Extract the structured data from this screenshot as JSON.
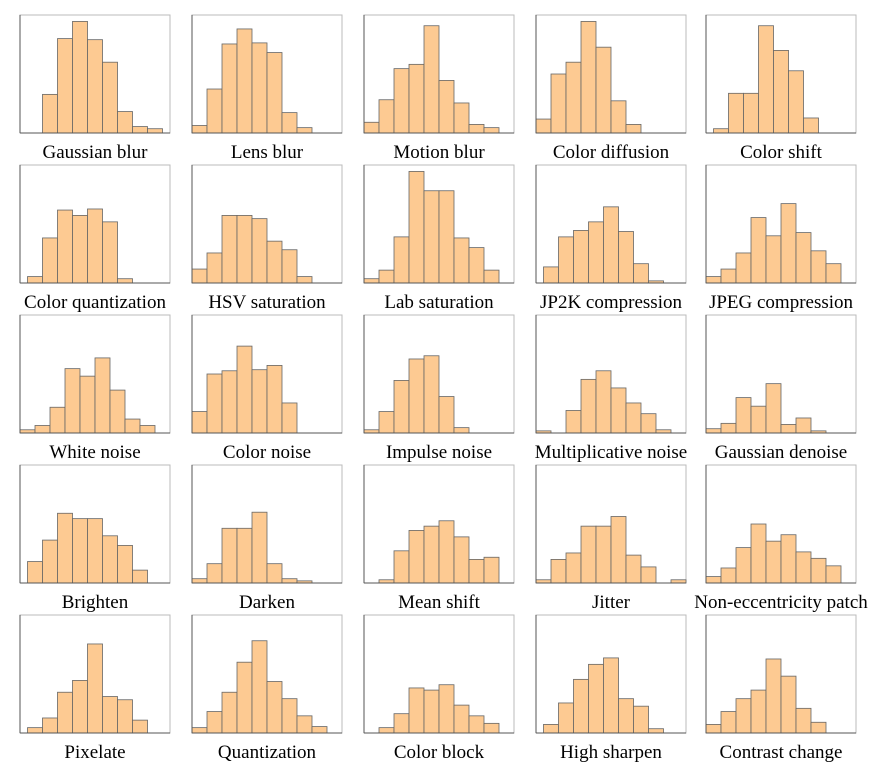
{
  "chart_data": [
    {
      "type": "histogram",
      "title": "Gaussian blur",
      "bins": [
        1.5,
        2.5,
        3.5,
        4.5,
        5.5,
        6.5,
        7.5,
        8.5,
        9.5
      ],
      "values": [
        36,
        88,
        104,
        87,
        66,
        20,
        6,
        4
      ],
      "xlim": [
        0,
        10
      ],
      "ylim": [
        0,
        110
      ],
      "color": "#fdca92"
    },
    {
      "type": "histogram",
      "title": "Lens blur",
      "bins": [
        0,
        1,
        2,
        3,
        4,
        5,
        6,
        7,
        8
      ],
      "values": [
        7,
        41,
        83,
        97,
        84,
        75,
        19,
        5
      ],
      "xlim": [
        0,
        10
      ],
      "ylim": [
        0,
        110
      ],
      "color": "#fdca92"
    },
    {
      "type": "histogram",
      "title": "Motion blur",
      "bins": [
        0,
        1,
        2,
        3,
        4,
        5,
        6,
        7,
        8,
        9
      ],
      "values": [
        10,
        31,
        60,
        64,
        100,
        49,
        28,
        8,
        5
      ],
      "xlim": [
        0,
        10
      ],
      "ylim": [
        0,
        110
      ],
      "color": "#fdca92"
    },
    {
      "type": "histogram",
      "title": "Color diffusion",
      "bins": [
        0,
        1,
        2,
        3,
        4,
        5,
        6,
        7
      ],
      "values": [
        13,
        55,
        66,
        104,
        80,
        30,
        8
      ],
      "xlim": [
        0,
        10
      ],
      "ylim": [
        0,
        110
      ],
      "color": "#fdca92"
    },
    {
      "type": "histogram",
      "title": "Color shift",
      "bins": [
        0.5,
        1.5,
        2.5,
        3.5,
        4.5,
        5.5,
        6.5,
        7.5
      ],
      "values": [
        4,
        37,
        37,
        100,
        77,
        58,
        14
      ],
      "xlim": [
        0,
        10
      ],
      "ylim": [
        0,
        110
      ],
      "color": "#fdca92"
    },
    {
      "type": "histogram",
      "title": "Color quantization",
      "bins": [
        0.5,
        1.5,
        2.5,
        3.5,
        4.5,
        5.5,
        6.5,
        7.5
      ],
      "values": [
        6,
        42,
        68,
        63,
        69,
        57,
        4
      ],
      "xlim": [
        0,
        10
      ],
      "ylim": [
        0,
        110
      ],
      "color": "#fdca92"
    },
    {
      "type": "histogram",
      "title": "HSV saturation",
      "bins": [
        0,
        1,
        2,
        3,
        4,
        5,
        6,
        7,
        8
      ],
      "values": [
        13,
        28,
        63,
        63,
        60,
        39,
        31,
        6
      ],
      "xlim": [
        0,
        10
      ],
      "ylim": [
        0,
        110
      ],
      "color": "#fdca92"
    },
    {
      "type": "histogram",
      "title": "Lab saturation",
      "bins": [
        0,
        1,
        2,
        3,
        4,
        5,
        6,
        7,
        8,
        9
      ],
      "values": [
        4,
        12,
        43,
        104,
        86,
        86,
        42,
        33,
        12
      ],
      "xlim": [
        0,
        10
      ],
      "ylim": [
        0,
        110
      ],
      "color": "#fdca92"
    },
    {
      "type": "histogram",
      "title": "JP2K compression",
      "bins": [
        0.5,
        1.5,
        2.5,
        3.5,
        4.5,
        5.5,
        6.5,
        7.5,
        8.5
      ],
      "values": [
        15,
        43,
        49,
        57,
        71,
        48,
        18,
        2
      ],
      "xlim": [
        0,
        10
      ],
      "ylim": [
        0,
        110
      ],
      "color": "#fdca92"
    },
    {
      "type": "histogram",
      "title": "JPEG compression",
      "bins": [
        0,
        1,
        2,
        3,
        4,
        5,
        6,
        7,
        8,
        9
      ],
      "values": [
        6,
        13,
        28,
        61,
        44,
        74,
        47,
        30,
        18
      ],
      "xlim": [
        0,
        10
      ],
      "ylim": [
        0,
        110
      ],
      "color": "#fdca92"
    },
    {
      "type": "histogram",
      "title": "White noise",
      "bins": [
        0,
        1,
        2,
        3,
        4,
        5,
        6,
        7,
        8,
        9
      ],
      "values": [
        3,
        7,
        24,
        60,
        53,
        70,
        40,
        13,
        7
      ],
      "xlim": [
        0,
        10
      ],
      "ylim": [
        0,
        110
      ],
      "color": "#fdca92"
    },
    {
      "type": "histogram",
      "title": "Color noise",
      "bins": [
        0,
        1,
        2,
        3,
        4,
        5,
        6,
        7
      ],
      "values": [
        20,
        55,
        58,
        81,
        59,
        63,
        28
      ],
      "xlim": [
        0,
        10
      ],
      "ylim": [
        0,
        110
      ],
      "color": "#fdca92"
    },
    {
      "type": "histogram",
      "title": "Impulse noise",
      "bins": [
        0,
        1,
        2,
        3,
        4,
        5,
        6,
        7
      ],
      "values": [
        3,
        20,
        49,
        69,
        72,
        34,
        5
      ],
      "xlim": [
        0,
        10
      ],
      "ylim": [
        0,
        110
      ],
      "color": "#fdca92"
    },
    {
      "type": "histogram",
      "title": "Multiplicative noise",
      "bins": [
        0,
        1,
        2,
        3,
        4,
        5,
        6,
        7,
        8,
        9
      ],
      "values": [
        2,
        0,
        21,
        50,
        58,
        42,
        28,
        18,
        3
      ],
      "xlim": [
        0,
        10
      ],
      "ylim": [
        0,
        110
      ],
      "color": "#fdca92"
    },
    {
      "type": "histogram",
      "title": "Gaussian denoise",
      "bins": [
        0,
        1,
        2,
        3,
        4,
        5,
        6,
        7,
        8
      ],
      "values": [
        4,
        9,
        33,
        25,
        46,
        8,
        14,
        2
      ],
      "xlim": [
        0,
        10
      ],
      "ylim": [
        0,
        110
      ],
      "color": "#fdca92"
    },
    {
      "type": "histogram",
      "title": "Brighten",
      "bins": [
        0.5,
        1.5,
        2.5,
        3.5,
        4.5,
        5.5,
        6.5,
        7.5,
        8.5
      ],
      "values": [
        20,
        40,
        65,
        60,
        60,
        44,
        35,
        12
      ],
      "xlim": [
        0,
        10
      ],
      "ylim": [
        0,
        110
      ],
      "color": "#fdca92"
    },
    {
      "type": "histogram",
      "title": "Darken",
      "bins": [
        0,
        1,
        2,
        3,
        4,
        5,
        6,
        7,
        8
      ],
      "values": [
        4,
        18,
        51,
        51,
        66,
        18,
        4,
        2
      ],
      "xlim": [
        0,
        10
      ],
      "ylim": [
        0,
        110
      ],
      "color": "#fdca92"
    },
    {
      "type": "histogram",
      "title": "Mean shift",
      "bins": [
        1,
        2,
        3,
        4,
        5,
        6,
        7,
        8,
        9
      ],
      "values": [
        3,
        30,
        49,
        53,
        58,
        43,
        22,
        24
      ],
      "xlim": [
        0,
        10
      ],
      "ylim": [
        0,
        110
      ],
      "color": "#fdca92"
    },
    {
      "type": "histogram",
      "title": "Jitter",
      "bins": [
        0,
        1,
        2,
        3,
        4,
        5,
        6,
        7,
        8,
        9,
        10
      ],
      "values": [
        3,
        22,
        28,
        53,
        53,
        62,
        26,
        15,
        0,
        3
      ],
      "xlim": [
        0,
        10
      ],
      "ylim": [
        0,
        110
      ],
      "color": "#fdca92"
    },
    {
      "type": "histogram",
      "title": "Non-eccentricity patch",
      "bins": [
        0,
        1,
        2,
        3,
        4,
        5,
        6,
        7,
        8,
        9
      ],
      "values": [
        6,
        14,
        33,
        55,
        39,
        45,
        29,
        23,
        16
      ],
      "xlim": [
        0,
        10
      ],
      "ylim": [
        0,
        110
      ],
      "color": "#fdca92"
    },
    {
      "type": "histogram",
      "title": "Pixelate",
      "bins": [
        0.5,
        1.5,
        2.5,
        3.5,
        4.5,
        5.5,
        6.5,
        7.5,
        8.5
      ],
      "values": [
        5,
        14,
        38,
        49,
        83,
        34,
        31,
        12
      ],
      "xlim": [
        0,
        10
      ],
      "ylim": [
        0,
        110
      ],
      "color": "#fdca92"
    },
    {
      "type": "histogram",
      "title": "Quantization",
      "bins": [
        0,
        1,
        2,
        3,
        4,
        5,
        6,
        7,
        8,
        9
      ],
      "values": [
        5,
        20,
        38,
        66,
        86,
        48,
        32,
        16,
        6
      ],
      "xlim": [
        0,
        10
      ],
      "ylim": [
        0,
        110
      ],
      "color": "#fdca92"
    },
    {
      "type": "histogram",
      "title": "Color block",
      "bins": [
        1,
        2,
        3,
        4,
        5,
        6,
        7,
        8,
        9
      ],
      "values": [
        5,
        18,
        42,
        40,
        45,
        26,
        16,
        9
      ],
      "xlim": [
        0,
        10
      ],
      "ylim": [
        0,
        110
      ],
      "color": "#fdca92"
    },
    {
      "type": "histogram",
      "title": "High sharpen",
      "bins": [
        0.5,
        1.5,
        2.5,
        3.5,
        4.5,
        5.5,
        6.5,
        7.5,
        8.5
      ],
      "values": [
        8,
        28,
        50,
        64,
        70,
        32,
        25,
        4
      ],
      "xlim": [
        0,
        10
      ],
      "ylim": [
        0,
        110
      ],
      "color": "#fdca92"
    },
    {
      "type": "histogram",
      "title": "Contrast change",
      "bins": [
        0,
        1,
        2,
        3,
        4,
        5,
        6,
        7,
        8
      ],
      "values": [
        8,
        20,
        32,
        40,
        69,
        53,
        23,
        10
      ],
      "xlim": [
        0,
        10
      ],
      "ylim": [
        0,
        110
      ],
      "color": "#fdca92"
    }
  ]
}
